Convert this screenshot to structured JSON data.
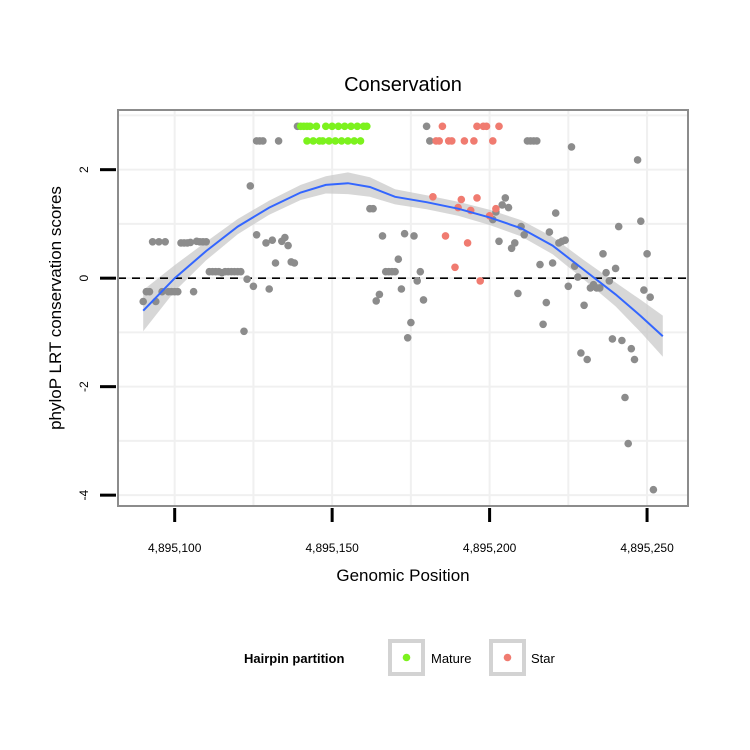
{
  "chart_data": {
    "type": "scatter",
    "title": "Conservation",
    "xlabel": "Genomic Position",
    "ylabel": "phyloP LRT conservation scores",
    "xlim": [
      4895082,
      4895263
    ],
    "ylim": [
      -4.2,
      3.1
    ],
    "x_ticks": [
      4895100,
      4895150,
      4895200,
      4895250
    ],
    "x_tick_labels": [
      "4,895,100",
      "4,895,150",
      "4,895,200",
      "4,895,250"
    ],
    "y_ticks": [
      -4,
      -2,
      0,
      2
    ],
    "y_tick_labels": [
      "-4",
      "-2",
      "0",
      "2"
    ],
    "grid": true,
    "reference_line": {
      "y": 0,
      "style": "dashed"
    },
    "legend": {
      "title": "Hairpin partition",
      "position": "bottom",
      "entries": [
        {
          "label": "Mature",
          "color": "#7CF21D"
        },
        {
          "label": "Star",
          "color": "#F07B70"
        }
      ]
    },
    "colors": {
      "other": "#8C8C8C",
      "mature": "#7CF21D",
      "star": "#F07B70",
      "smooth_line": "#3366FF",
      "confidence_band": "#C9C9C9",
      "panel_border": "#8C8C8C",
      "grid": "#F0F0F0"
    },
    "series": [
      {
        "group": "other",
        "points": [
          [
            4895090,
            -0.43
          ],
          [
            4895091,
            -0.25
          ],
          [
            4895092,
            -0.25
          ],
          [
            4895093,
            0.67
          ],
          [
            4895094,
            -0.43
          ],
          [
            4895095,
            0.67
          ],
          [
            4895096,
            -0.25
          ],
          [
            4895097,
            0.67
          ],
          [
            4895098,
            -0.25
          ],
          [
            4895099,
            -0.25
          ],
          [
            4895100,
            -0.25
          ],
          [
            4895101,
            -0.25
          ],
          [
            4895102,
            0.65
          ],
          [
            4895103,
            0.65
          ],
          [
            4895104,
            0.65
          ],
          [
            4895105,
            0.66
          ],
          [
            4895106,
            -0.25
          ],
          [
            4895107,
            0.68
          ],
          [
            4895108,
            0.67
          ],
          [
            4895109,
            0.67
          ],
          [
            4895110,
            0.67
          ],
          [
            4895111,
            0.12
          ],
          [
            4895112,
            0.12
          ],
          [
            4895113,
            0.12
          ],
          [
            4895114,
            0.12
          ],
          [
            4895115,
            0.1
          ],
          [
            4895116,
            0.12
          ],
          [
            4895117,
            0.12
          ],
          [
            4895118,
            0.12
          ],
          [
            4895119,
            0.12
          ],
          [
            4895120,
            0.12
          ],
          [
            4895121,
            0.12
          ],
          [
            4895122,
            -0.98
          ],
          [
            4895123,
            -0.02
          ],
          [
            4895124,
            1.7
          ],
          [
            4895125,
            -0.15
          ],
          [
            4895126,
            0.8
          ],
          [
            4895126,
            2.53
          ],
          [
            4895127,
            2.53
          ],
          [
            4895128,
            2.53
          ],
          [
            4895129,
            0.65
          ],
          [
            4895130,
            -0.2
          ],
          [
            4895131,
            0.7
          ],
          [
            4895132,
            0.28
          ],
          [
            4895133,
            2.53
          ],
          [
            4895134,
            0.68
          ],
          [
            4895135,
            0.75
          ],
          [
            4895136,
            0.6
          ],
          [
            4895137,
            0.3
          ],
          [
            4895138,
            0.28
          ],
          [
            4895139,
            2.8
          ],
          [
            4895162,
            1.28
          ],
          [
            4895163,
            1.28
          ],
          [
            4895164,
            -0.42
          ],
          [
            4895165,
            -0.3
          ],
          [
            4895166,
            0.78
          ],
          [
            4895167,
            0.12
          ],
          [
            4895168,
            0.12
          ],
          [
            4895169,
            0.12
          ],
          [
            4895170,
            0.12
          ],
          [
            4895171,
            0.35
          ],
          [
            4895172,
            -0.2
          ],
          [
            4895173,
            0.82
          ],
          [
            4895174,
            -1.1
          ],
          [
            4895175,
            -0.82
          ],
          [
            4895176,
            0.78
          ],
          [
            4895177,
            -0.05
          ],
          [
            4895178,
            0.12
          ],
          [
            4895179,
            -0.4
          ],
          [
            4895180,
            2.8
          ],
          [
            4895181,
            2.53
          ],
          [
            4895201,
            1.08
          ],
          [
            4895202,
            1.22
          ],
          [
            4895203,
            0.68
          ],
          [
            4895204,
            1.35
          ],
          [
            4895205,
            1.48
          ],
          [
            4895206,
            1.3
          ],
          [
            4895207,
            0.55
          ],
          [
            4895208,
            0.65
          ],
          [
            4895209,
            -0.28
          ],
          [
            4895210,
            0.95
          ],
          [
            4895211,
            0.8
          ],
          [
            4895212,
            2.53
          ],
          [
            4895213,
            2.53
          ],
          [
            4895214,
            2.53
          ],
          [
            4895215,
            2.53
          ],
          [
            4895216,
            0.25
          ],
          [
            4895217,
            -0.85
          ],
          [
            4895218,
            -0.45
          ],
          [
            4895219,
            0.85
          ],
          [
            4895220,
            0.28
          ],
          [
            4895221,
            1.2
          ],
          [
            4895222,
            0.65
          ],
          [
            4895223,
            0.68
          ],
          [
            4895224,
            0.7
          ],
          [
            4895225,
            -0.15
          ],
          [
            4895226,
            2.42
          ],
          [
            4895227,
            0.22
          ],
          [
            4895228,
            0.02
          ],
          [
            4895229,
            -1.38
          ],
          [
            4895230,
            -0.5
          ],
          [
            4895231,
            -1.5
          ],
          [
            4895232,
            -0.18
          ],
          [
            4895233,
            -0.12
          ],
          [
            4895234,
            -0.18
          ],
          [
            4895235,
            -0.18
          ],
          [
            4895236,
            0.45
          ],
          [
            4895237,
            0.1
          ],
          [
            4895238,
            -0.05
          ],
          [
            4895239,
            -1.12
          ],
          [
            4895240,
            0.18
          ],
          [
            4895241,
            0.95
          ],
          [
            4895242,
            -1.15
          ],
          [
            4895243,
            -2.2
          ],
          [
            4895244,
            -3.05
          ],
          [
            4895245,
            -1.3
          ],
          [
            4895246,
            -1.5
          ],
          [
            4895247,
            2.18
          ],
          [
            4895248,
            1.05
          ],
          [
            4895249,
            -0.22
          ],
          [
            4895250,
            0.45
          ],
          [
            4895251,
            -0.35
          ],
          [
            4895252,
            -3.9
          ]
        ]
      },
      {
        "group": "mature",
        "name": "Mature",
        "points": [
          [
            4895140,
            2.8
          ],
          [
            4895141,
            2.8
          ],
          [
            4895142,
            2.53
          ],
          [
            4895142,
            2.8
          ],
          [
            4895143,
            2.8
          ],
          [
            4895144,
            2.53
          ],
          [
            4895145,
            2.8
          ],
          [
            4895146,
            2.53
          ],
          [
            4895147,
            2.53
          ],
          [
            4895148,
            2.8
          ],
          [
            4895149,
            2.53
          ],
          [
            4895150,
            2.8
          ],
          [
            4895151,
            2.53
          ],
          [
            4895152,
            2.8
          ],
          [
            4895153,
            2.53
          ],
          [
            4895154,
            2.8
          ],
          [
            4895155,
            2.53
          ],
          [
            4895156,
            2.8
          ],
          [
            4895157,
            2.53
          ],
          [
            4895158,
            2.8
          ],
          [
            4895159,
            2.53
          ],
          [
            4895160,
            2.8
          ],
          [
            4895161,
            2.8
          ]
        ]
      },
      {
        "group": "star",
        "name": "Star",
        "points": [
          [
            4895182,
            1.5
          ],
          [
            4895183,
            2.53
          ],
          [
            4895184,
            2.53
          ],
          [
            4895185,
            2.8
          ],
          [
            4895186,
            0.78
          ],
          [
            4895187,
            2.53
          ],
          [
            4895188,
            2.53
          ],
          [
            4895189,
            0.2
          ],
          [
            4895190,
            1.3
          ],
          [
            4895191,
            1.45
          ],
          [
            4895192,
            2.53
          ],
          [
            4895193,
            0.65
          ],
          [
            4895194,
            1.25
          ],
          [
            4895195,
            2.53
          ],
          [
            4895196,
            1.48
          ],
          [
            4895196,
            2.8
          ],
          [
            4895197,
            -0.05
          ],
          [
            4895198,
            2.8
          ],
          [
            4895199,
            2.8
          ],
          [
            4895200,
            1.15
          ],
          [
            4895201,
            2.53
          ],
          [
            4895202,
            1.28
          ],
          [
            4895203,
            2.8
          ]
        ]
      }
    ],
    "smooth": {
      "x": [
        4895090,
        4895100,
        4895110,
        4895120,
        4895130,
        4895140,
        4895148,
        4895155,
        4895162,
        4895170,
        4895180,
        4895190,
        4895200,
        4895210,
        4895220,
        4895230,
        4895240,
        4895248,
        4895255
      ],
      "y": [
        -0.6,
        0.0,
        0.5,
        0.95,
        1.3,
        1.58,
        1.72,
        1.75,
        1.68,
        1.5,
        1.4,
        1.28,
        1.12,
        0.92,
        0.6,
        0.15,
        -0.3,
        -0.7,
        -1.07
      ],
      "se": [
        0.38,
        0.24,
        0.17,
        0.14,
        0.13,
        0.14,
        0.16,
        0.2,
        0.18,
        0.14,
        0.13,
        0.13,
        0.14,
        0.15,
        0.16,
        0.18,
        0.22,
        0.3,
        0.38
      ]
    }
  }
}
